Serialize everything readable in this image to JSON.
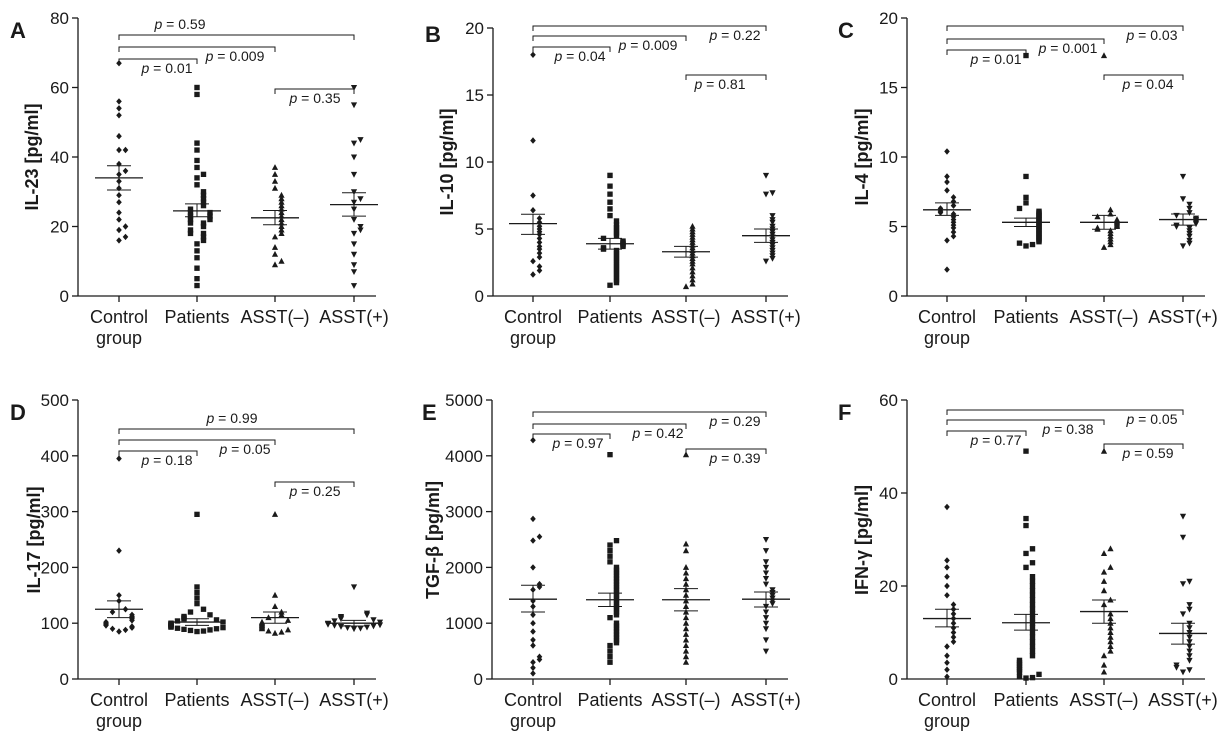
{
  "chart_data": [
    {
      "type": "scatter",
      "panel": "A",
      "ylabel": "IL-23 [pg/ml]",
      "ylim": [
        0,
        80
      ],
      "yticks": [
        0,
        20,
        40,
        60,
        80
      ],
      "categories": [
        "Control group",
        "Patients",
        "ASST(–)",
        "ASST(+)"
      ],
      "markers": [
        "diamond",
        "square",
        "triangle-up",
        "triangle-down"
      ],
      "means": [
        34,
        24.5,
        22.5,
        26.3
      ],
      "sem_low": [
        30.5,
        22.8,
        20.5,
        23
      ],
      "sem_high": [
        37.5,
        26.5,
        24.6,
        29.7
      ],
      "values": [
        [
          67,
          56,
          54,
          52,
          46,
          42,
          42,
          38,
          36,
          35,
          33,
          31,
          29,
          27,
          24,
          22,
          20,
          19,
          17,
          16
        ],
        [
          60,
          58,
          44,
          42,
          39,
          37,
          35,
          34,
          32,
          30,
          29,
          28,
          27,
          26,
          25,
          24,
          24,
          23,
          23,
          22,
          22,
          21,
          21,
          20,
          19,
          18,
          18,
          17,
          16,
          15,
          13,
          11,
          8,
          5,
          3
        ],
        [
          37,
          35,
          33,
          31,
          29,
          28,
          27,
          26,
          25,
          24,
          23,
          22,
          21,
          20,
          19,
          18,
          17,
          14,
          12,
          10,
          9
        ],
        [
          60,
          55,
          45,
          44,
          40,
          35,
          30,
          28,
          27,
          25,
          22,
          20,
          19,
          18,
          15,
          12,
          9,
          7,
          3
        ]
      ],
      "pvalues": [
        {
          "from": 0,
          "to": 3,
          "label": "0.59"
        },
        {
          "from": 0,
          "to": 2,
          "label": "0.009"
        },
        {
          "from": 0,
          "to": 1,
          "label": "0.01"
        },
        {
          "from": 2,
          "to": 3,
          "label": "0.35"
        }
      ]
    },
    {
      "type": "scatter",
      "panel": "B",
      "ylabel": "IL-10 [pg/ml]",
      "ylim": [
        0,
        20
      ],
      "yticks": [
        0,
        5,
        10,
        15,
        20
      ],
      "categories": [
        "Control group",
        "Patients",
        "ASST(–)",
        "ASST(+)"
      ],
      "markers": [
        "diamond",
        "square",
        "triangle-up",
        "triangle-down"
      ],
      "means": [
        5.4,
        3.9,
        3.3,
        4.5
      ],
      "sem_low": [
        4.6,
        3.5,
        2.9,
        4.0
      ],
      "sem_high": [
        6.1,
        4.3,
        3.7,
        5.0
      ],
      "values": [
        [
          18,
          11.6,
          7.5,
          6.4,
          5.8,
          5.5,
          5.2,
          5.0,
          4.8,
          4.6,
          4.3,
          4.0,
          3.7,
          3.5,
          3.2,
          2.9,
          2.6,
          2.2,
          1.9,
          1.6
        ],
        [
          9.0,
          8.2,
          7.6,
          7.0,
          6.5,
          6.0,
          5.6,
          5.3,
          5.1,
          4.9,
          4.7,
          4.5,
          4.3,
          4.1,
          4.0,
          3.9,
          3.8,
          3.7,
          3.6,
          3.5,
          3.4,
          3.2,
          3.0,
          2.8,
          2.6,
          2.4,
          2.2,
          2.0,
          1.8,
          1.6,
          1.4,
          1.2,
          1.0,
          0.8
        ],
        [
          5.2,
          5.0,
          4.8,
          4.6,
          4.4,
          4.2,
          4.0,
          3.8,
          3.6,
          3.4,
          3.2,
          3.0,
          2.8,
          2.6,
          2.4,
          2.1,
          1.8,
          1.5,
          1.2,
          0.9,
          0.7
        ],
        [
          9.0,
          7.7,
          7.6,
          6.0,
          5.7,
          5.5,
          5.2,
          5.0,
          4.8,
          4.6,
          4.4,
          4.2,
          4.0,
          3.8,
          3.6,
          3.4,
          3.2,
          3.0,
          2.8,
          2.6
        ]
      ],
      "pvalues": [
        {
          "from": 0,
          "to": 3,
          "label": "0.22"
        },
        {
          "from": 0,
          "to": 2,
          "label": "0.009"
        },
        {
          "from": 0,
          "to": 1,
          "label": "0.04"
        },
        {
          "from": 2,
          "to": 3,
          "label": "0.81"
        }
      ]
    },
    {
      "type": "scatter",
      "panel": "C",
      "ylabel": "IL-4 [pg/ml]",
      "ylim": [
        0,
        20
      ],
      "yticks": [
        0,
        5,
        10,
        15,
        20
      ],
      "categories": [
        "Control group",
        "Patients",
        "ASST(–)",
        "ASST(+)"
      ],
      "markers": [
        "diamond",
        "square",
        "triangle-up",
        "triangle-down"
      ],
      "means": [
        6.2,
        5.3,
        5.3,
        5.5
      ],
      "sem_low": [
        5.8,
        5.0,
        4.8,
        5.1
      ],
      "sem_high": [
        6.7,
        5.6,
        5.8,
        5.9
      ],
      "values": [
        [
          10.4,
          8.6,
          8.2,
          7.6,
          7.1,
          6.8,
          6.5,
          6.3,
          6.1,
          6.0,
          5.9,
          5.7,
          5.5,
          5.3,
          5.1,
          4.9,
          4.6,
          4.3,
          4.0,
          1.9
        ],
        [
          17.3,
          8.6,
          7.1,
          6.7,
          6.3,
          6.1,
          6.0,
          5.9,
          5.8,
          5.7,
          5.6,
          5.5,
          5.4,
          5.3,
          5.2,
          5.1,
          5.0,
          4.9,
          4.8,
          4.7,
          4.6,
          4.5,
          4.4,
          4.3,
          4.2,
          4.1,
          4.0,
          3.9,
          3.8,
          3.7,
          3.6
        ],
        [
          17.3,
          6.2,
          5.9,
          5.7,
          5.5,
          5.4,
          5.3,
          5.2,
          5.1,
          5.0,
          4.9,
          4.8,
          4.7,
          4.5,
          4.3,
          4.1,
          3.9,
          3.7,
          3.5
        ],
        [
          8.6,
          7.0,
          6.6,
          6.3,
          6.0,
          5.8,
          5.6,
          5.5,
          5.4,
          5.3,
          5.2,
          5.1,
          5.0,
          4.9,
          4.7,
          4.5,
          4.3,
          4.0,
          3.8,
          3.6
        ]
      ],
      "pvalues": [
        {
          "from": 0,
          "to": 3,
          "label": "0.03"
        },
        {
          "from": 0,
          "to": 2,
          "label": "0.001"
        },
        {
          "from": 0,
          "to": 1,
          "label": "0.01"
        },
        {
          "from": 2,
          "to": 3,
          "label": "0.04"
        }
      ]
    },
    {
      "type": "scatter",
      "panel": "D",
      "ylabel": "IL-17 [pg/ml]",
      "ylim": [
        0,
        500
      ],
      "yticks": [
        0,
        100,
        200,
        300,
        400,
        500
      ],
      "categories": [
        "Control group",
        "Patients",
        "ASST(–)",
        "ASST(+)"
      ],
      "markers": [
        "diamond",
        "square",
        "triangle-up",
        "triangle-down"
      ],
      "means": [
        125,
        102,
        110,
        100
      ],
      "sem_low": [
        110,
        96,
        100,
        95
      ],
      "sem_high": [
        140,
        108,
        120,
        105
      ],
      "values": [
        [
          395,
          230,
          150,
          140,
          125,
          120,
          115,
          112,
          110,
          108,
          105,
          102,
          100,
          98,
          96,
          94,
          92,
          90,
          88,
          85
        ],
        [
          295,
          165,
          155,
          145,
          135,
          125,
          120,
          115,
          112,
          110,
          108,
          106,
          104,
          102,
          100,
          99,
          98,
          97,
          96,
          95,
          94,
          93,
          92,
          91,
          90,
          89,
          88,
          87,
          86,
          85
        ],
        [
          295,
          150,
          130,
          120,
          115,
          110,
          105,
          102,
          100,
          98,
          96,
          94,
          92,
          90,
          88,
          86,
          84,
          82
        ],
        [
          165,
          118,
          115,
          112,
          110,
          108,
          106,
          104,
          102,
          100,
          99,
          98,
          97,
          96,
          95,
          94,
          93,
          92,
          91,
          90
        ]
      ],
      "pvalues": [
        {
          "from": 0,
          "to": 3,
          "label": "0.99"
        },
        {
          "from": 0,
          "to": 2,
          "label": "0.05"
        },
        {
          "from": 0,
          "to": 1,
          "label": "0.18"
        },
        {
          "from": 2,
          "to": 3,
          "label": "0.25"
        }
      ]
    },
    {
      "type": "scatter",
      "panel": "E",
      "ylabel": "TGF-β [pg/ml]",
      "ylim": [
        0,
        5000
      ],
      "yticks": [
        0,
        1000,
        2000,
        3000,
        4000,
        5000
      ],
      "categories": [
        "Control group",
        "Patients",
        "ASST(–)",
        "ASST(+)"
      ],
      "markers": [
        "diamond",
        "square",
        "triangle-up",
        "triangle-down"
      ],
      "means": [
        1430,
        1420,
        1420,
        1430
      ],
      "sem_low": [
        1200,
        1300,
        1220,
        1290
      ],
      "sem_high": [
        1680,
        1540,
        1620,
        1560
      ],
      "values": [
        [
          4280,
          2870,
          2550,
          2480,
          2000,
          1700,
          1650,
          1600,
          1400,
          1300,
          1150,
          1000,
          850,
          700,
          600,
          400,
          350,
          300,
          200,
          100
        ],
        [
          4020,
          2480,
          2400,
          2300,
          2200,
          2100,
          2000,
          1950,
          1900,
          1850,
          1800,
          1750,
          1700,
          1650,
          1600,
          1550,
          1500,
          1450,
          1400,
          1350,
          1300,
          1250,
          1200,
          1150,
          1100,
          1000,
          950,
          900,
          850,
          800,
          750,
          700,
          650,
          600,
          500,
          400,
          300
        ],
        [
          4020,
          2420,
          2300,
          2000,
          1900,
          1800,
          1700,
          1600,
          1500,
          1400,
          1300,
          1200,
          1100,
          1000,
          900,
          800,
          700,
          600,
          500,
          400,
          300
        ],
        [
          2500,
          2300,
          2100,
          2000,
          1900,
          1800,
          1700,
          1600,
          1550,
          1500,
          1450,
          1400,
          1350,
          1300,
          1200,
          1100,
          1000,
          900,
          700,
          500
        ]
      ],
      "pvalues": [
        {
          "from": 0,
          "to": 3,
          "label": "0.29"
        },
        {
          "from": 0,
          "to": 2,
          "label": "0.42"
        },
        {
          "from": 0,
          "to": 1,
          "label": "0.97"
        },
        {
          "from": 2,
          "to": 3,
          "label": "0.39"
        }
      ]
    },
    {
      "type": "scatter",
      "panel": "F",
      "ylabel": "IFN-γ [pg/ml]",
      "ylim": [
        0,
        60
      ],
      "yticks": [
        0,
        20,
        40,
        60
      ],
      "categories": [
        "Control group",
        "Patients",
        "ASST(–)",
        "ASST(+)"
      ],
      "markers": [
        "diamond",
        "square",
        "triangle-up",
        "triangle-down"
      ],
      "means": [
        13,
        12.1,
        14.5,
        9.8
      ],
      "sem_low": [
        11.2,
        10.5,
        12,
        7.5
      ],
      "sem_high": [
        15,
        13.9,
        17,
        12
      ],
      "values": [
        [
          37,
          25.5,
          24,
          22,
          20,
          18,
          16,
          15,
          14,
          13,
          12,
          11,
          10,
          9,
          8,
          7,
          5,
          3.5,
          2,
          0.5
        ],
        [
          49,
          34.5,
          33,
          28,
          27,
          25,
          24,
          22,
          21,
          20,
          19,
          18,
          17,
          16,
          15,
          14,
          13,
          12,
          11,
          10,
          9,
          8,
          7,
          6,
          5,
          4,
          3.5,
          3,
          2.5,
          2,
          1.5,
          1,
          0.5,
          0.3,
          0.2
        ],
        [
          49,
          28,
          27,
          24,
          23,
          21,
          19,
          17,
          16,
          14,
          13,
          12,
          11,
          10,
          9,
          8,
          7,
          6,
          5,
          3,
          1.5
        ],
        [
          35,
          30.5,
          21,
          20.5,
          16,
          15,
          14,
          12,
          11,
          10,
          9,
          8,
          7,
          6,
          5,
          4,
          3,
          2.5,
          2,
          1.5
        ]
      ],
      "pvalues": [
        {
          "from": 0,
          "to": 3,
          "label": "0.05"
        },
        {
          "from": 0,
          "to": 2,
          "label": "0.38"
        },
        {
          "from": 0,
          "to": 1,
          "label": "0.77"
        },
        {
          "from": 2,
          "to": 3,
          "label": "0.59"
        }
      ]
    }
  ]
}
